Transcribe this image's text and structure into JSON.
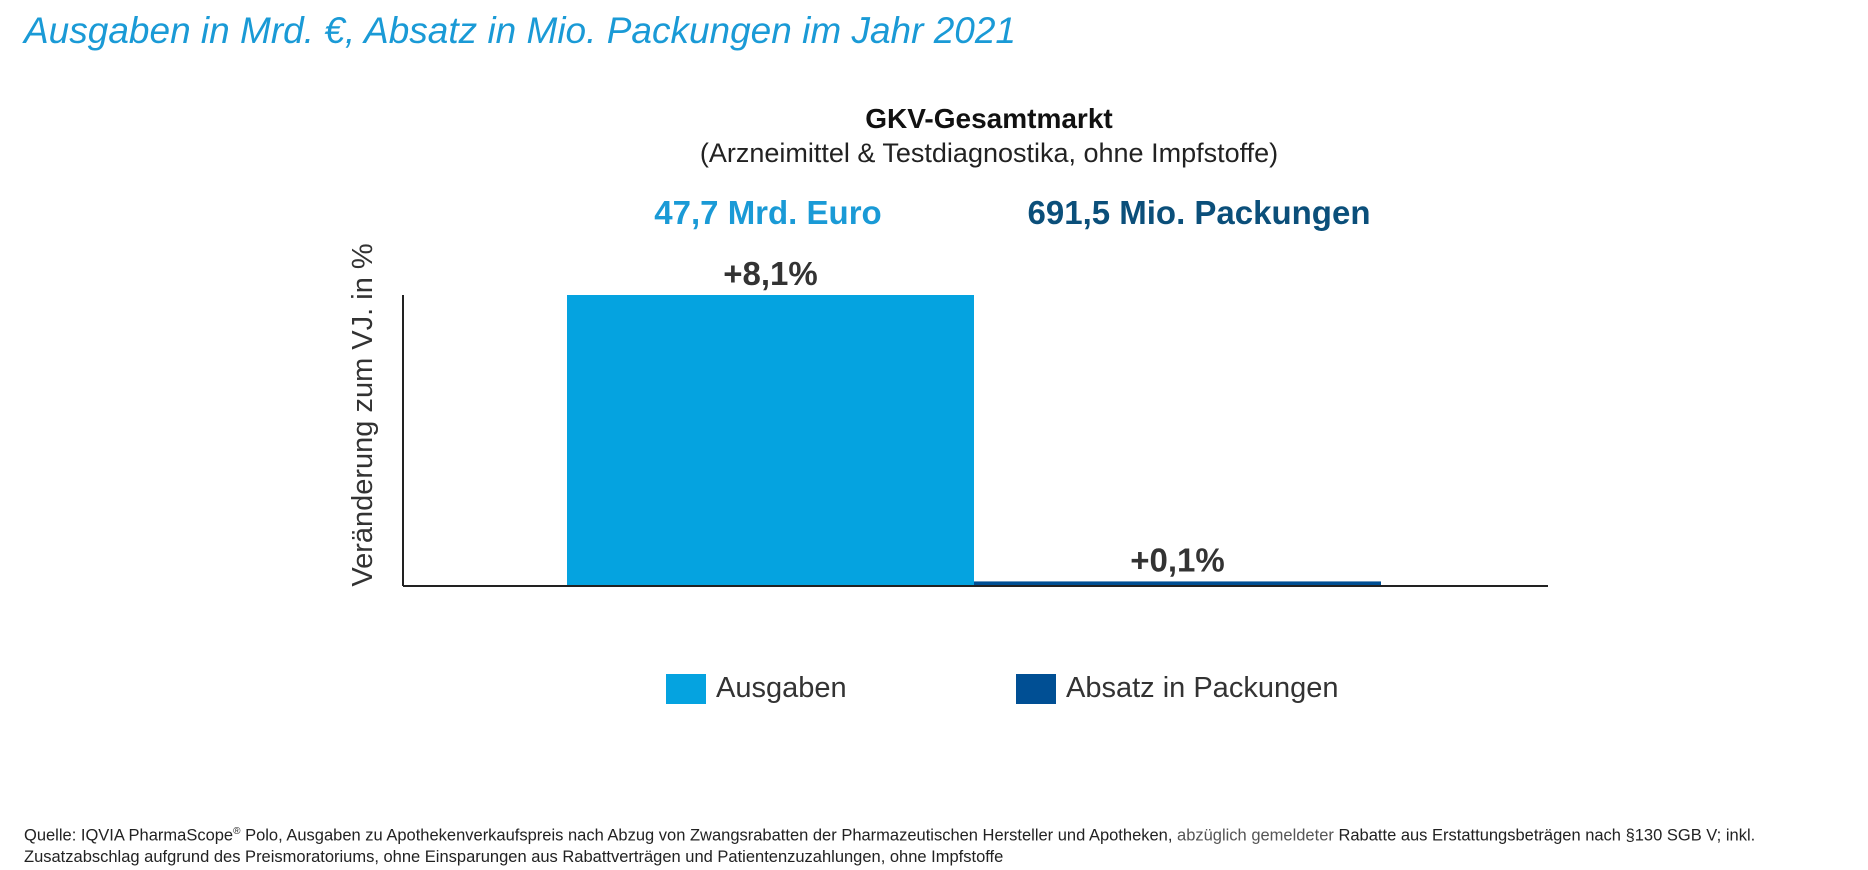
{
  "headline": "Ausgaben in Mrd. €, Absatz in Mio. Packungen im Jahr 2021",
  "chart_data": {
    "type": "bar",
    "title": "GKV-Gesamtmarkt",
    "subtitle": "(Arzneimittel & Testdiagnostika, ohne Impfstoffe)",
    "ylabel": "Veränderung zum VJ. in %",
    "xlabel": "",
    "categories": [
      "Ausgaben",
      "Absatz in Packungen"
    ],
    "values": [
      8.1,
      0.1
    ],
    "value_labels": [
      "+8,1%",
      "+0,1%"
    ],
    "ylim": [
      0,
      8.1
    ],
    "colors": [
      "#05a3e0",
      "#004f94"
    ],
    "grid": false,
    "legend_position": "bottom",
    "annotations": [
      {
        "text": "47,7 Mrd. Euro",
        "color": "#1a9ad6"
      },
      {
        "text": "691,5 Mio. Packungen",
        "color": "#0b4f7a"
      }
    ]
  },
  "legend": [
    {
      "label": "Ausgaben",
      "color": "#05a3e0"
    },
    {
      "label": "Absatz in Packungen",
      "color": "#004f94"
    }
  ],
  "source": {
    "part1": "Quelle: IQVIA PharmaScope",
    "reg": "®",
    "part2": " Polo, Ausgaben zu Apothekenverkaufspreis nach Abzug von Zwangsrabatten der Pharmazeutischen Hersteller und Apotheken, ",
    "part3": "abzüglich gemeldeter",
    "part4": " Rabatte aus Erstattungsbeträgen nach §130 SGB V; inkl. Zusatzabschlag aufgrund des Preismoratoriums, ohne Einsparungen aus Rabattverträgen und Patientenzuzahlungen, ohne Impfstoffe"
  }
}
